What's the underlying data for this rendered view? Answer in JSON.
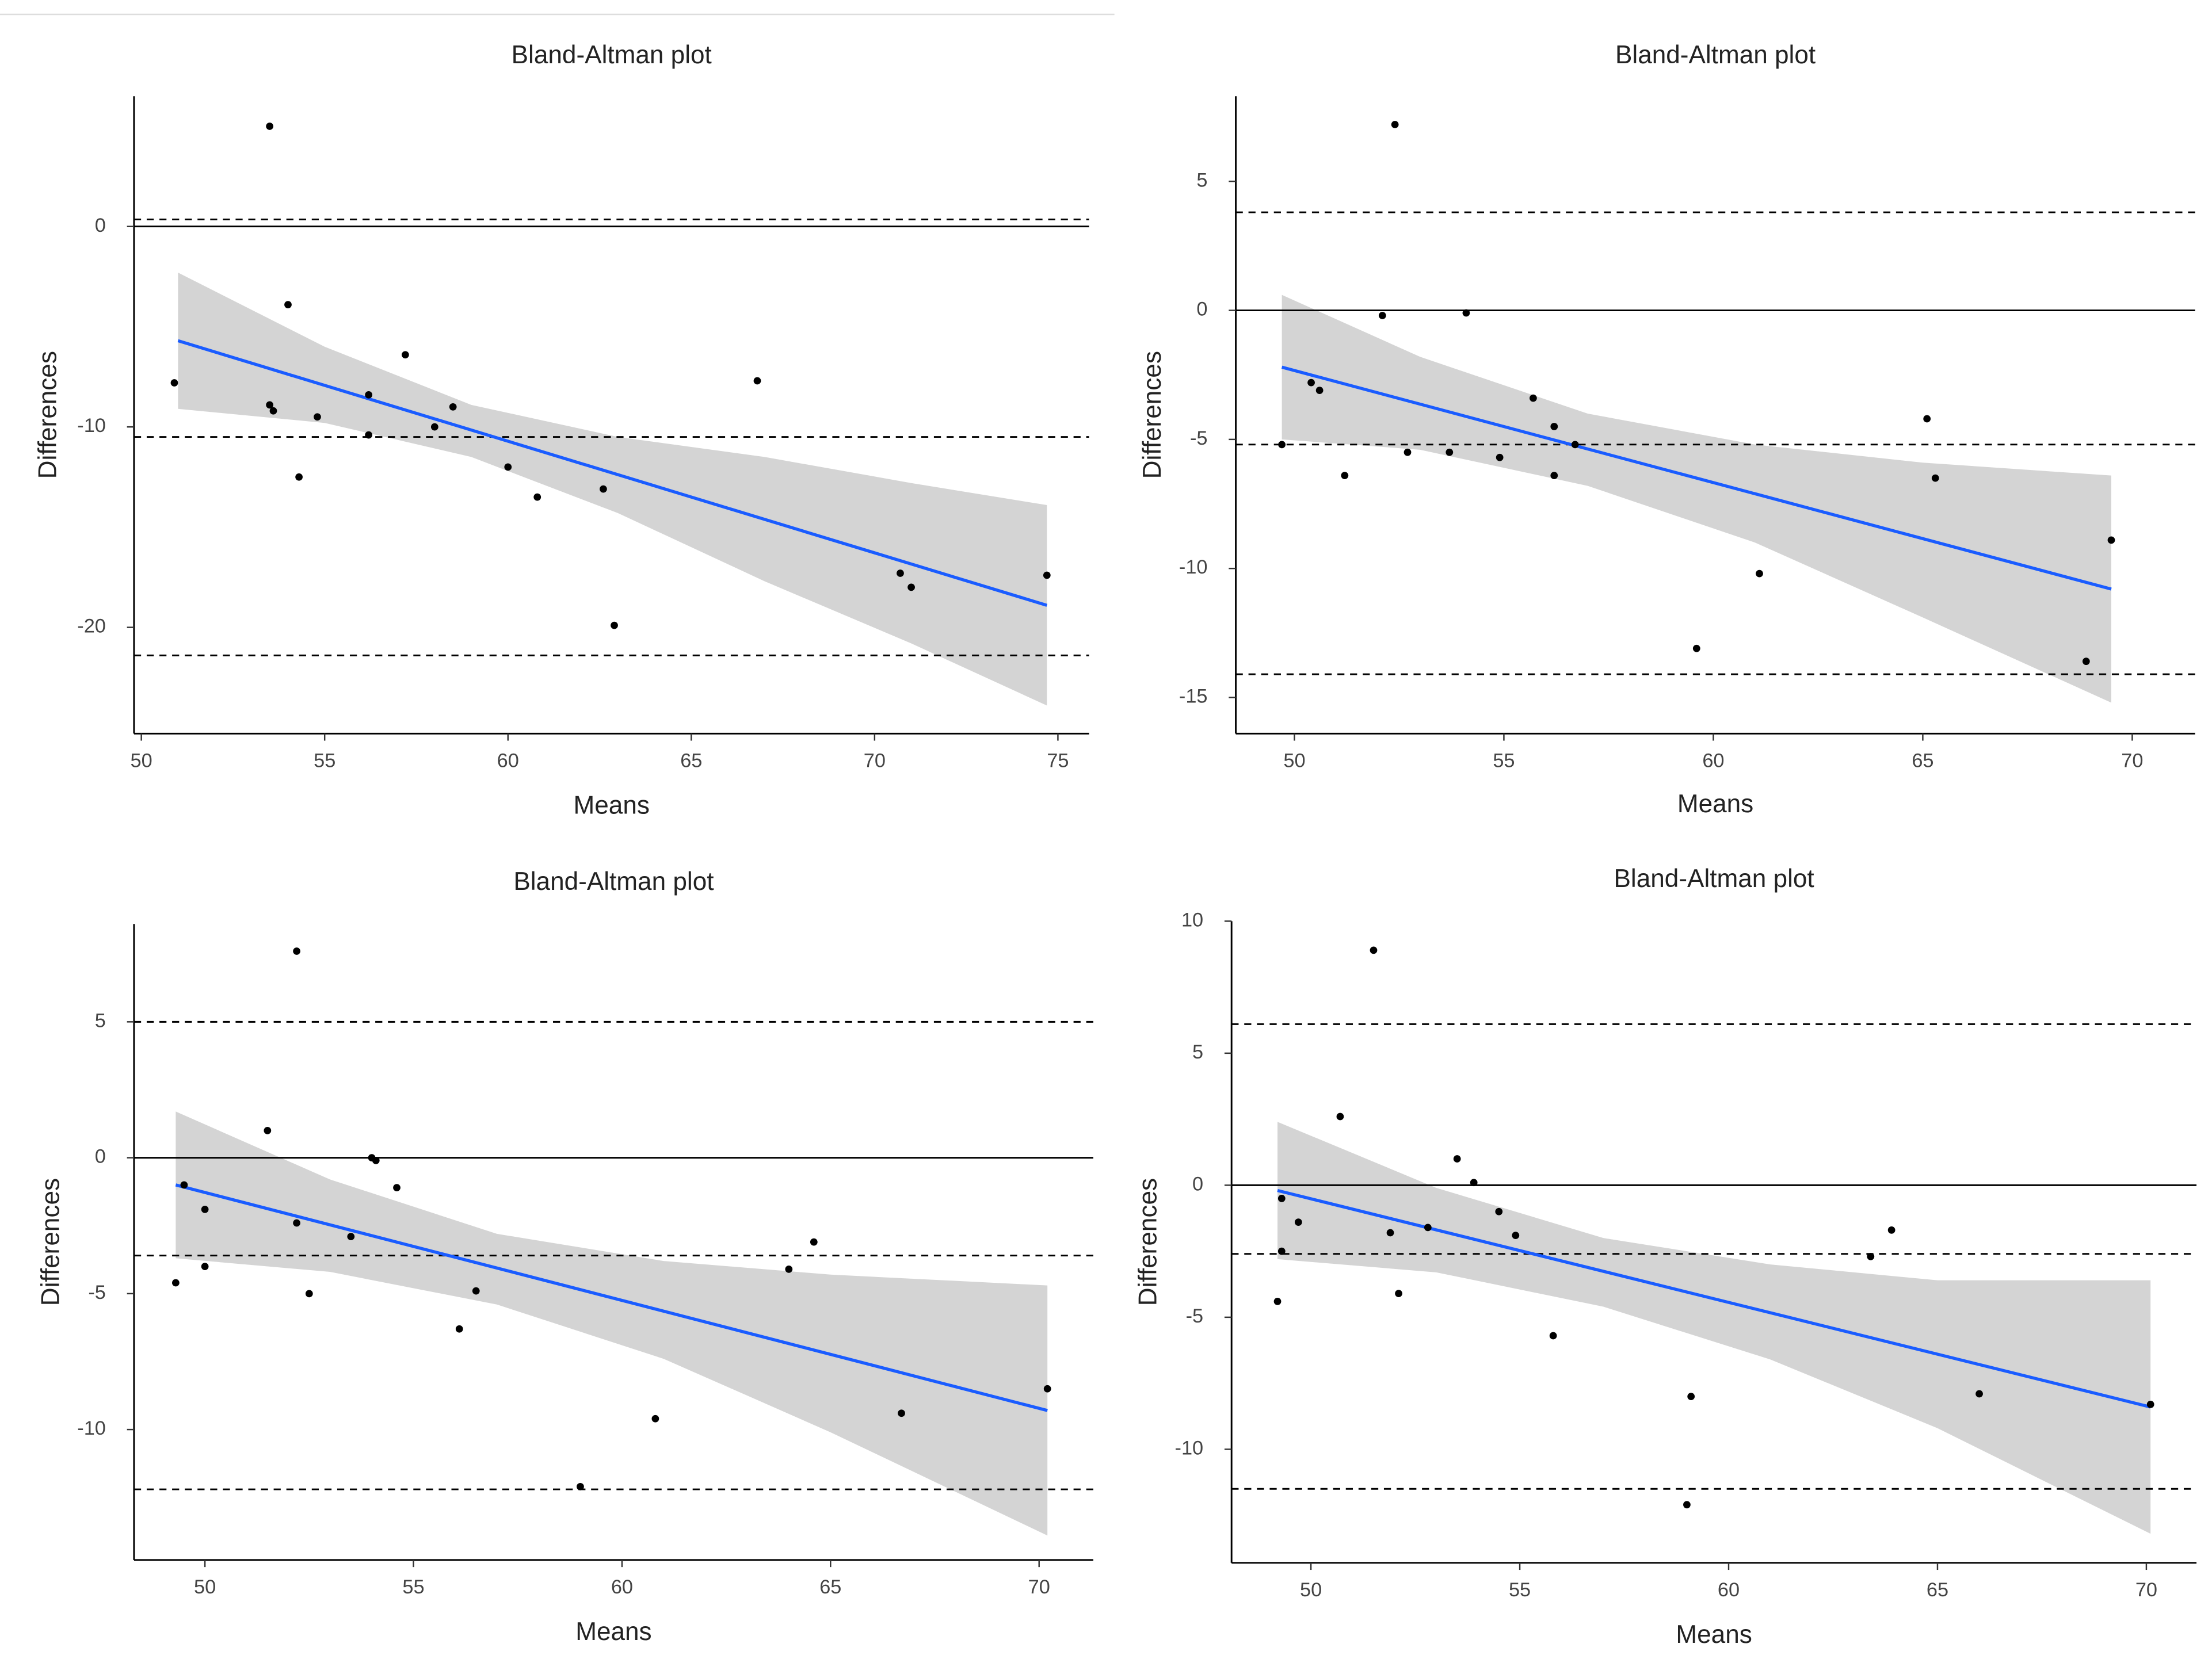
{
  "chart_data": [
    {
      "type": "scatter",
      "title": "Bland-Altman plot",
      "x_label": "Means",
      "y_label": "Differences",
      "color": "#000000",
      "x": [
        50.9,
        53.5,
        53.5,
        53.6,
        54.0,
        54.3,
        54.8,
        56.2,
        56.2,
        57.2,
        58.0,
        58.5,
        60.0,
        60.8,
        62.6,
        62.9,
        66.8,
        70.7,
        71.0,
        74.7
      ],
      "values": [
        -7.8,
        5.0,
        -8.9,
        -9.2,
        -3.9,
        -12.5,
        -9.5,
        -8.4,
        -10.4,
        -6.4,
        -10.0,
        -9.0,
        -12.0,
        -13.5,
        -13.1,
        -19.9,
        -7.7,
        -17.3,
        -18.0,
        -17.4
      ],
      "fit": {
        "color": "#1a5cff",
        "x": [
          51.0,
          74.7
        ],
        "y": [
          -5.7,
          -18.9
        ]
      },
      "ci": {
        "color": "#d4d4d4",
        "x": [
          51,
          55,
          59,
          63,
          67,
          71,
          74.7
        ],
        "upper": [
          -2.3,
          -6.0,
          -8.9,
          -10.5,
          -11.5,
          -12.8,
          -13.9
        ],
        "lower": [
          -9.1,
          -9.8,
          -11.5,
          -14.3,
          -17.7,
          -20.8,
          -23.9
        ]
      },
      "hlines": [
        {
          "value": 0,
          "style": "solid"
        },
        {
          "value": 0.35,
          "style": "dashed"
        },
        {
          "value": -10.5,
          "style": "dashed"
        },
        {
          "value": -21.4,
          "style": "dashed"
        }
      ],
      "xlim": [
        49.8,
        75.85
      ],
      "ylim": [
        -25.3,
        6.5
      ],
      "xticks": [
        50,
        55,
        60,
        65,
        70,
        75
      ],
      "yticks": [
        -20,
        -10,
        0
      ]
    },
    {
      "type": "scatter",
      "title": "Bland-Altman plot",
      "x_label": "Means",
      "y_label": "Differences",
      "color": "#000000",
      "x": [
        49.7,
        50.4,
        50.6,
        51.2,
        52.1,
        52.4,
        52.7,
        53.7,
        54.1,
        54.9,
        55.7,
        56.2,
        56.2,
        56.7,
        59.6,
        61.1,
        65.1,
        65.3,
        68.9,
        69.5
      ],
      "values": [
        -5.2,
        -2.8,
        -3.1,
        -6.4,
        -0.2,
        7.2,
        -5.5,
        -5.5,
        -0.1,
        -5.7,
        -3.4,
        -4.5,
        -6.4,
        -5.2,
        -13.1,
        -10.2,
        -4.2,
        -6.5,
        -13.6,
        -8.9
      ],
      "fit": {
        "color": "#1a5cff",
        "x": [
          49.7,
          69.5
        ],
        "y": [
          -2.2,
          -10.8
        ]
      },
      "ci": {
        "color": "#d4d4d4",
        "x": [
          49.7,
          53,
          57,
          61,
          65,
          69.5
        ],
        "upper": [
          0.6,
          -1.8,
          -4.0,
          -5.2,
          -5.9,
          -6.4
        ],
        "lower": [
          -5.0,
          -5.4,
          -6.8,
          -9.0,
          -11.9,
          -15.2
        ]
      },
      "hlines": [
        {
          "value": 0,
          "style": "solid"
        },
        {
          "value": 3.8,
          "style": "dashed"
        },
        {
          "value": -5.2,
          "style": "dashed"
        },
        {
          "value": -14.1,
          "style": "dashed"
        }
      ],
      "xlim": [
        48.6,
        71.5
      ],
      "ylim": [
        -16.4,
        8.3
      ],
      "xticks": [
        50,
        55,
        60,
        65,
        70
      ],
      "yticks": [
        -15,
        -10,
        -5,
        0,
        5
      ]
    },
    {
      "type": "scatter",
      "title": "Bland-Altman plot",
      "x_label": "Means",
      "y_label": "Differences",
      "color": "#000000",
      "x": [
        49.3,
        49.5,
        50.0,
        50.0,
        51.5,
        52.2,
        52.2,
        52.5,
        53.5,
        54.0,
        54.1,
        54.6,
        56.1,
        56.5,
        59.0,
        60.8,
        64.0,
        64.6,
        66.7,
        70.2
      ],
      "values": [
        -4.6,
        -1.0,
        -1.9,
        -4.0,
        1.0,
        7.6,
        -2.4,
        -5.0,
        -2.9,
        0.0,
        -0.1,
        -1.1,
        -6.3,
        -4.9,
        -12.1,
        -9.6,
        -4.1,
        -3.1,
        -9.4,
        -8.5
      ],
      "fit": {
        "color": "#1a5cff",
        "x": [
          49.3,
          70.2
        ],
        "y": [
          -1.0,
          -9.3
        ]
      },
      "ci": {
        "color": "#d4d4d4",
        "x": [
          49.3,
          53,
          57,
          61,
          65,
          70.2
        ],
        "upper": [
          1.7,
          -0.8,
          -2.8,
          -3.8,
          -4.3,
          -4.7
        ],
        "lower": [
          -3.7,
          -4.2,
          -5.4,
          -7.4,
          -10.1,
          -13.9
        ]
      },
      "hlines": [
        {
          "value": 0,
          "style": "solid"
        },
        {
          "value": 5.0,
          "style": "dashed"
        },
        {
          "value": -3.6,
          "style": "dashed"
        },
        {
          "value": -12.2,
          "style": "dashed"
        }
      ],
      "xlim": [
        48.3,
        71.3
      ],
      "ylim": [
        -14.8,
        8.6
      ],
      "xticks": [
        50,
        55,
        60,
        65,
        70
      ],
      "yticks": [
        -10,
        -5,
        0,
        5
      ]
    },
    {
      "type": "scatter",
      "title": "Bland-Altman plot",
      "x_label": "Means",
      "y_label": "Differences",
      "color": "#000000",
      "x": [
        49.2,
        49.3,
        49.3,
        49.7,
        50.7,
        51.5,
        51.9,
        52.1,
        52.8,
        53.5,
        53.9,
        54.5,
        54.9,
        55.8,
        59.1,
        59.0,
        63.4,
        63.9,
        66.0,
        70.1
      ],
      "values": [
        -4.4,
        -0.5,
        -2.5,
        -1.4,
        2.6,
        8.9,
        -1.8,
        -4.1,
        -1.6,
        1.0,
        0.1,
        -1.0,
        -1.9,
        -5.7,
        -8.0,
        -12.1,
        -2.7,
        -1.7,
        -7.9,
        -8.3
      ],
      "fit": {
        "color": "#1a5cff",
        "x": [
          49.2,
          70.1
        ],
        "y": [
          -0.2,
          -8.4
        ]
      },
      "ci": {
        "color": "#d4d4d4",
        "x": [
          49.2,
          53,
          57,
          61,
          65,
          70.1
        ],
        "upper": [
          2.4,
          -0.1,
          -2.0,
          -3.0,
          -3.6,
          -3.6
        ],
        "lower": [
          -2.8,
          -3.3,
          -4.6,
          -6.6,
          -9.2,
          -13.2
        ]
      },
      "hlines": [
        {
          "value": 0,
          "style": "solid"
        },
        {
          "value": 6.1,
          "style": "dashed"
        },
        {
          "value": -2.6,
          "style": "dashed"
        },
        {
          "value": -11.5,
          "style": "dashed"
        }
      ],
      "xlim": [
        48.1,
        71.2
      ],
      "ylim": [
        -14.3,
        10.0
      ],
      "xticks": [
        50,
        55,
        60,
        65,
        70
      ],
      "yticks": [
        -10,
        -5,
        0,
        5,
        10
      ]
    }
  ]
}
